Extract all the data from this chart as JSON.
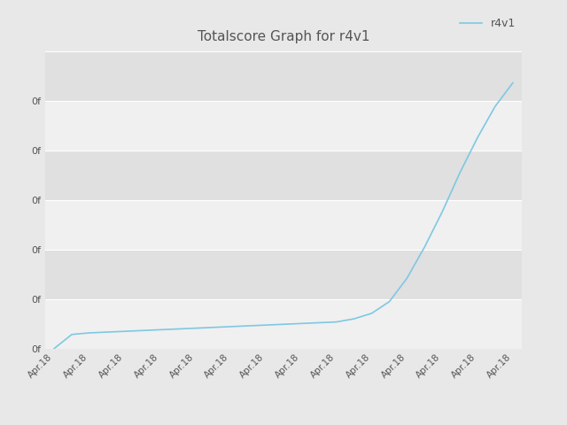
{
  "title": "Totalscore Graph for r4v1",
  "legend_label": "r4v1",
  "line_color": "#7ec8e3",
  "background_color": "#e8e8e8",
  "plot_bg_color": "#e8e8e8",
  "band_color1": "#e0e0e0",
  "band_color2": "#f0f0f0",
  "title_color": "#555555",
  "tick_color": "#555555",
  "grid_color": "#ffffff",
  "x_values": [
    0,
    1,
    2,
    3,
    4,
    5,
    6,
    7,
    8,
    9,
    10,
    11,
    12,
    13,
    14,
    15,
    16,
    17,
    18,
    19,
    20,
    21,
    22,
    23,
    24,
    25,
    26
  ],
  "y_values": [
    0,
    18,
    20,
    21,
    22,
    23,
    24,
    25,
    26,
    27,
    28,
    29,
    30,
    31,
    32,
    33,
    34,
    38,
    45,
    60,
    90,
    130,
    175,
    225,
    270,
    310,
    340
  ],
  "xlabel": "Apr.18",
  "ylabel_label": "0f",
  "num_xticks": 14,
  "num_yticks": 6,
  "figsize": [
    6.4,
    4.8
  ],
  "dpi": 100
}
